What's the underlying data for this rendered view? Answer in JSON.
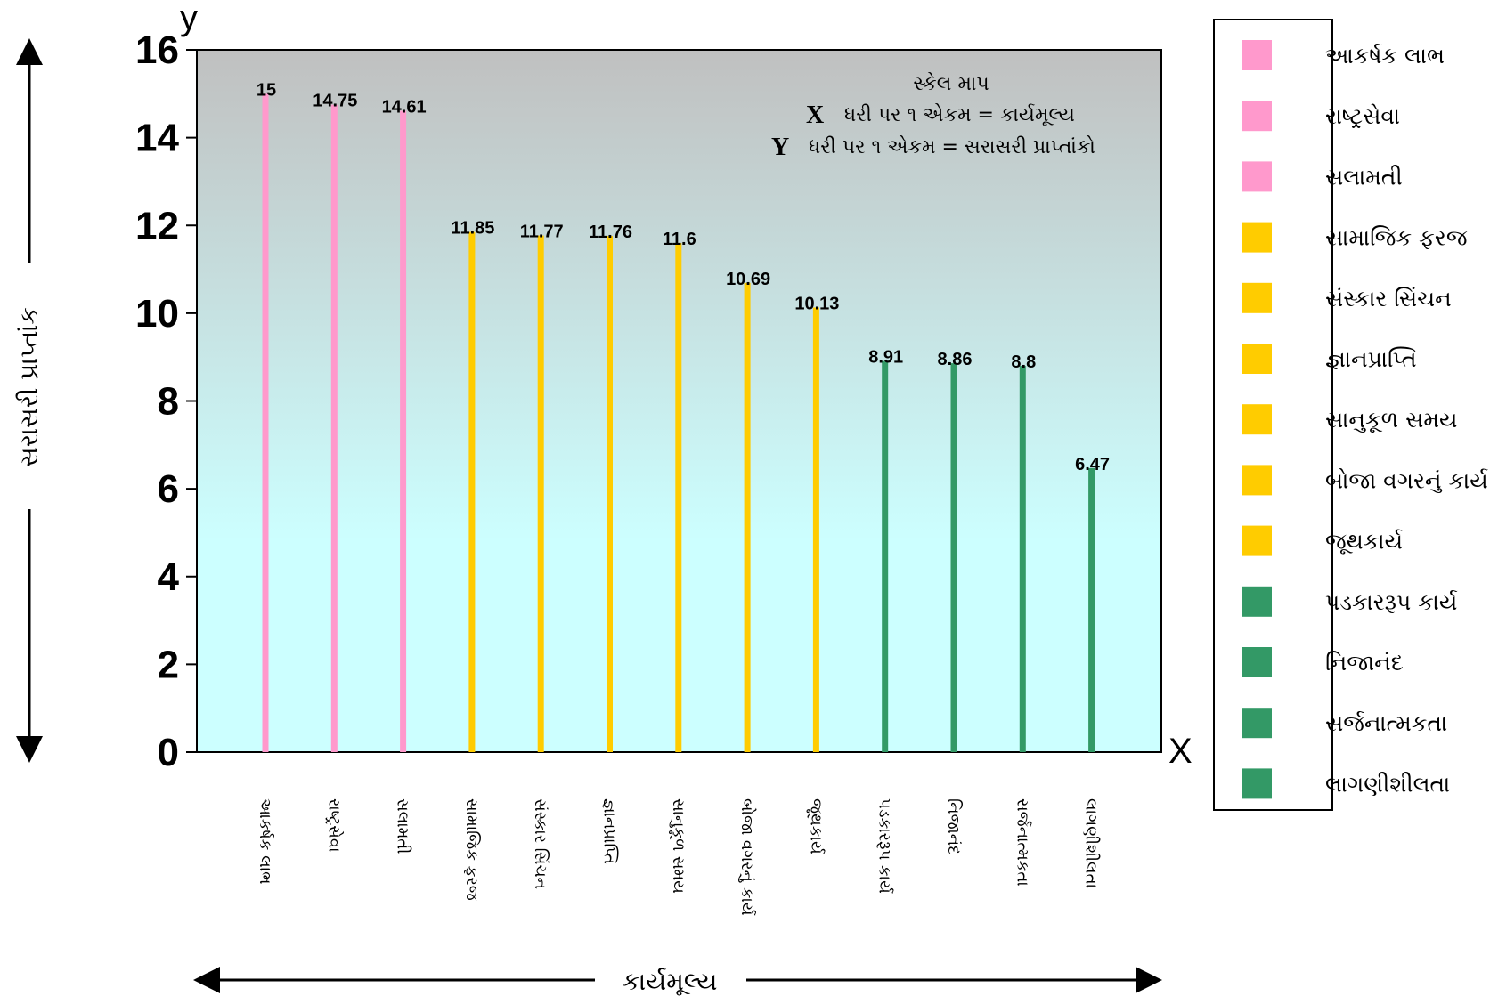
{
  "chart_data": {
    "type": "bar",
    "categories": [
      "આકર્ષક લાભ",
      "રાષ્ટ્રસેવા",
      "સલામતી",
      "સામાજિક ફરજ",
      "સંસ્કાર સિંચન",
      "જ્ઞાનપ્રાપ્તિ",
      "સાનુકૂળ સમય",
      "બોજા વગરનું કાર્ય",
      "જૂથકાર્ય",
      "પડકારરૂપ કાર્ય",
      "નિજાનંદ",
      "સર્જનાત્મકતા",
      "લાગણીશીલતા"
    ],
    "values": [
      15,
      14.75,
      14.61,
      11.85,
      11.77,
      11.76,
      11.6,
      10.69,
      10.13,
      8.91,
      8.86,
      8.8,
      6.47
    ],
    "data_labels": [
      "15",
      "14.75",
      "14.61",
      "11.85",
      "11.77",
      "11.76",
      "11.6",
      "10.69",
      "10.13",
      "8.91",
      "8.86",
      "8.8",
      "6.47"
    ],
    "bar_colors": [
      "#ff99cc",
      "#ff99cc",
      "#ff99cc",
      "#ffcc00",
      "#ffcc00",
      "#ffcc00",
      "#ffcc00",
      "#ffcc00",
      "#ffcc00",
      "#339966",
      "#339966",
      "#339966",
      "#339966"
    ],
    "ylim": [
      0,
      16
    ],
    "yticks": [
      0,
      2,
      4,
      6,
      8,
      10,
      12,
      14,
      16
    ],
    "xlabel": "કાર્યમૂલ્ય",
    "ylabel": "સરાસરી પ્રાપ્તાંક",
    "x_axis_letter": "X",
    "y_axis_letter": "y",
    "grid": false,
    "legend_position": "right",
    "scale_note": {
      "title": "સ્કેલ માપ",
      "x_letter": "X",
      "x_text": "ધરી પર ૧ એકમ =  કાર્યમૂલ્ય",
      "y_letter": "Y",
      "y_text": "ધરી પર ૧ એકમ = સરાસરી પ્રાપ્તાંકો"
    },
    "plot_background": {
      "top": "#c0c0c0",
      "bottom": "#ccffff"
    }
  }
}
